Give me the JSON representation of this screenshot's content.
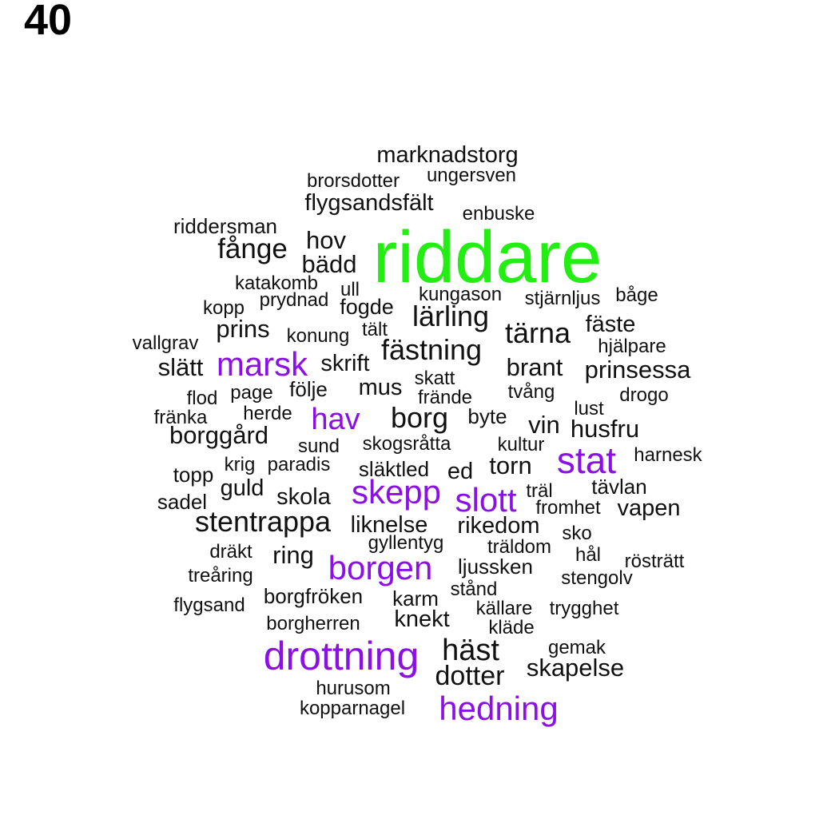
{
  "panel_label": "40",
  "colors": {
    "highlight_primary": "#22ee11",
    "highlight_secondary": "#8b10e6",
    "normal": "#111111"
  },
  "words": [
    {
      "text": "riddare",
      "group": "primary"
    },
    {
      "text": "drottning",
      "group": "secondary"
    },
    {
      "text": "borgen",
      "group": "secondary"
    },
    {
      "text": "hedning",
      "group": "secondary"
    },
    {
      "text": "stat",
      "group": "secondary"
    },
    {
      "text": "slott",
      "group": "secondary"
    },
    {
      "text": "skepp",
      "group": "secondary"
    },
    {
      "text": "marsk",
      "group": "secondary"
    },
    {
      "text": "hav",
      "group": "secondary"
    },
    {
      "text": "marknadstorg",
      "group": "normal"
    },
    {
      "text": "brorsdotter",
      "group": "normal"
    },
    {
      "text": "ungersven",
      "group": "normal"
    },
    {
      "text": "flygsandsfält",
      "group": "normal"
    },
    {
      "text": "enbuske",
      "group": "normal"
    },
    {
      "text": "riddersman",
      "group": "normal"
    },
    {
      "text": "fånge",
      "group": "normal"
    },
    {
      "text": "hov",
      "group": "normal"
    },
    {
      "text": "bädd",
      "group": "normal"
    },
    {
      "text": "katakomb",
      "group": "normal"
    },
    {
      "text": "ull",
      "group": "normal"
    },
    {
      "text": "kungason",
      "group": "normal"
    },
    {
      "text": "stjärnljus",
      "group": "normal"
    },
    {
      "text": "båge",
      "group": "normal"
    },
    {
      "text": "kopp",
      "group": "normal"
    },
    {
      "text": "prydnad",
      "group": "normal"
    },
    {
      "text": "fogde",
      "group": "normal"
    },
    {
      "text": "lärling",
      "group": "normal"
    },
    {
      "text": "fäste",
      "group": "normal"
    },
    {
      "text": "prins",
      "group": "normal"
    },
    {
      "text": "konung",
      "group": "normal"
    },
    {
      "text": "tält",
      "group": "normal"
    },
    {
      "text": "tärna",
      "group": "normal"
    },
    {
      "text": "vallgrav",
      "group": "normal"
    },
    {
      "text": "hjälpare",
      "group": "normal"
    },
    {
      "text": "fästning",
      "group": "normal"
    },
    {
      "text": "slätt",
      "group": "normal"
    },
    {
      "text": "skrift",
      "group": "normal"
    },
    {
      "text": "brant",
      "group": "normal"
    },
    {
      "text": "prinsessa",
      "group": "normal"
    },
    {
      "text": "skatt",
      "group": "normal"
    },
    {
      "text": "mus",
      "group": "normal"
    },
    {
      "text": "flod",
      "group": "normal"
    },
    {
      "text": "page",
      "group": "normal"
    },
    {
      "text": "följe",
      "group": "normal"
    },
    {
      "text": "frände",
      "group": "normal"
    },
    {
      "text": "tvång",
      "group": "normal"
    },
    {
      "text": "drogo",
      "group": "normal"
    },
    {
      "text": "lust",
      "group": "normal"
    },
    {
      "text": "fränka",
      "group": "normal"
    },
    {
      "text": "herde",
      "group": "normal"
    },
    {
      "text": "borg",
      "group": "normal"
    },
    {
      "text": "byte",
      "group": "normal"
    },
    {
      "text": "vin",
      "group": "normal"
    },
    {
      "text": "husfru",
      "group": "normal"
    },
    {
      "text": "borggård",
      "group": "normal"
    },
    {
      "text": "sund",
      "group": "normal"
    },
    {
      "text": "skogsråtta",
      "group": "normal"
    },
    {
      "text": "kultur",
      "group": "normal"
    },
    {
      "text": "harnesk",
      "group": "normal"
    },
    {
      "text": "krig",
      "group": "normal"
    },
    {
      "text": "paradis",
      "group": "normal"
    },
    {
      "text": "torn",
      "group": "normal"
    },
    {
      "text": "topp",
      "group": "normal"
    },
    {
      "text": "släktled",
      "group": "normal"
    },
    {
      "text": "ed",
      "group": "normal"
    },
    {
      "text": "tävlan",
      "group": "normal"
    },
    {
      "text": "guld",
      "group": "normal"
    },
    {
      "text": "träl",
      "group": "normal"
    },
    {
      "text": "sadel",
      "group": "normal"
    },
    {
      "text": "skola",
      "group": "normal"
    },
    {
      "text": "fromhet",
      "group": "normal"
    },
    {
      "text": "vapen",
      "group": "normal"
    },
    {
      "text": "stentrappa",
      "group": "normal"
    },
    {
      "text": "liknelse",
      "group": "normal"
    },
    {
      "text": "rikedom",
      "group": "normal"
    },
    {
      "text": "sko",
      "group": "normal"
    },
    {
      "text": "gyllentyg",
      "group": "normal"
    },
    {
      "text": "träldom",
      "group": "normal"
    },
    {
      "text": "dräkt",
      "group": "normal"
    },
    {
      "text": "ring",
      "group": "normal"
    },
    {
      "text": "hål",
      "group": "normal"
    },
    {
      "text": "rösträtt",
      "group": "normal"
    },
    {
      "text": "treåring",
      "group": "normal"
    },
    {
      "text": "ljussken",
      "group": "normal"
    },
    {
      "text": "stengolv",
      "group": "normal"
    },
    {
      "text": "stånd",
      "group": "normal"
    },
    {
      "text": "borgfröken",
      "group": "normal"
    },
    {
      "text": "karm",
      "group": "normal"
    },
    {
      "text": "flygsand",
      "group": "normal"
    },
    {
      "text": "källare",
      "group": "normal"
    },
    {
      "text": "trygghet",
      "group": "normal"
    },
    {
      "text": "borgherren",
      "group": "normal"
    },
    {
      "text": "knekt",
      "group": "normal"
    },
    {
      "text": "kläde",
      "group": "normal"
    },
    {
      "text": "häst",
      "group": "normal"
    },
    {
      "text": "gemak",
      "group": "normal"
    },
    {
      "text": "skapelse",
      "group": "normal"
    },
    {
      "text": "dotter",
      "group": "normal"
    },
    {
      "text": "hurusom",
      "group": "normal"
    },
    {
      "text": "kopparnagel",
      "group": "normal"
    }
  ]
}
